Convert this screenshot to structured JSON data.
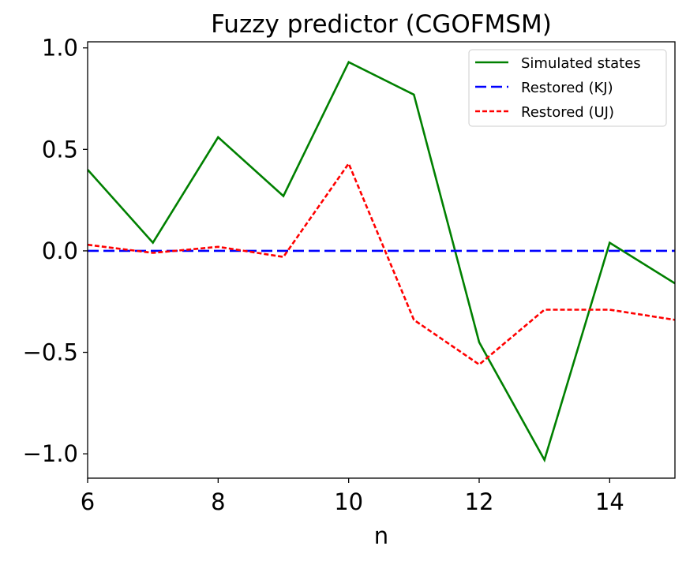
{
  "chart_data": {
    "type": "line",
    "title": "Fuzzy predictor (CGOFMSM)",
    "xlabel": "n",
    "ylabel": "",
    "xlim": [
      6,
      15
    ],
    "ylim": [
      -1.12,
      1.03
    ],
    "xticks": [
      6,
      8,
      10,
      12,
      14
    ],
    "xtick_labels": [
      "6",
      "8",
      "10",
      "12",
      "14"
    ],
    "yticks": [
      1.0,
      0.5,
      0.0,
      -0.5,
      -1.0
    ],
    "ytick_labels": [
      "1.0",
      "0.5",
      "0.0",
      "−0.5",
      "−1.0"
    ],
    "grid": false,
    "legend_position": "top-right",
    "series": [
      {
        "name": "Simulated states",
        "color": "#008000",
        "dash": "solid",
        "x": [
          6,
          7,
          8,
          9,
          10,
          11,
          12,
          13,
          14,
          15
        ],
        "y": [
          0.4,
          0.04,
          0.56,
          0.27,
          0.93,
          0.77,
          -0.45,
          -1.03,
          0.04,
          -0.16
        ]
      },
      {
        "name": "Restored (KJ)",
        "color": "#0000ff",
        "dash": "long",
        "x": [
          6,
          7,
          8,
          9,
          10,
          11,
          12,
          13,
          14,
          15
        ],
        "y": [
          0,
          0,
          0,
          0,
          0,
          0,
          0,
          0,
          0,
          0
        ]
      },
      {
        "name": "Restored (UJ)",
        "color": "#ff0000",
        "dash": "short",
        "x": [
          6,
          7,
          8,
          9,
          10,
          11,
          12,
          13,
          14,
          15
        ],
        "y": [
          0.03,
          -0.01,
          0.02,
          -0.03,
          0.43,
          -0.34,
          -0.56,
          -0.29,
          -0.29,
          -0.34
        ]
      }
    ]
  }
}
